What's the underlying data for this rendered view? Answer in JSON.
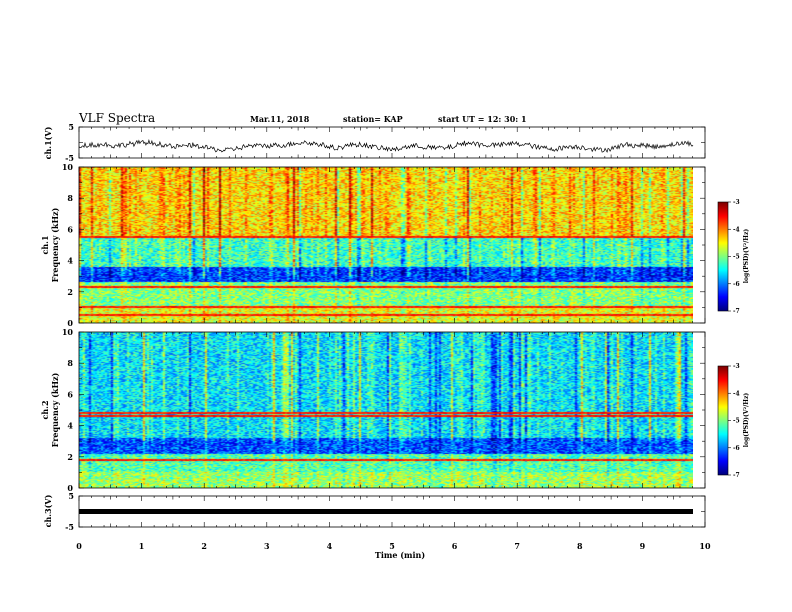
{
  "header": {
    "title": "VLF Spectra",
    "date": "Mar.11, 2018",
    "station": "station= KAP",
    "start": "start  UT =   12: 30: 1"
  },
  "axes": {
    "ch1_label": "ch.1(V)",
    "ch3_label": "ch.3(V)",
    "spec1_label_line1": "ch.1",
    "spec1_label_line2": "Frequency (kHz)",
    "spec2_label_line1": "ch.2",
    "spec2_label_line2": "Frequency (kHz)",
    "xlabel": "Time (min)",
    "cbar1_label": "log(PSD)(V²/Hz)",
    "cbar2_label": "log(PSD)(V²/Hz)"
  },
  "chart_data": [
    {
      "type": "line",
      "name": "ch1-waveform",
      "ylabel": "ch.1(V)",
      "xlim": [
        0,
        10
      ],
      "ylim": [
        -5,
        5
      ],
      "yticks": [
        "5",
        "-5"
      ],
      "series_hint": "noisy waveform around -1 V, mostly between -3 and 0"
    },
    {
      "type": "heatmap",
      "name": "ch1-spectrogram",
      "ylabel": "Frequency (kHz)",
      "xlim": [
        0,
        9.85
      ],
      "ylim": [
        0,
        10
      ],
      "xticks": [
        0,
        1,
        2,
        3,
        4,
        5,
        6,
        7,
        8,
        9,
        10
      ],
      "yticks": [
        0,
        2,
        4,
        6,
        8,
        10
      ],
      "colorbar": {
        "min": -7,
        "max": -3,
        "ticks": [
          "-3",
          "-4",
          "-5",
          "-6",
          "-7"
        ],
        "colormap": "jet"
      },
      "bands_kHz": [
        {
          "from": 0,
          "to": 1.0,
          "level": -4.6
        },
        {
          "from": 1.0,
          "to": 2.6,
          "level": -5.0
        },
        {
          "from": 2.6,
          "to": 3.6,
          "level": -6.3
        },
        {
          "from": 3.6,
          "to": 5.5,
          "level": -5.3
        },
        {
          "from": 5.5,
          "to": 10,
          "level": -4.4
        }
      ],
      "lines_kHz": [
        0.5,
        1.0,
        2.3,
        5.5
      ]
    },
    {
      "type": "heatmap",
      "name": "ch2-spectrogram",
      "ylabel": "Frequency (kHz)",
      "xlim": [
        0,
        9.85
      ],
      "ylim": [
        0,
        10
      ],
      "xticks": [
        0,
        1,
        2,
        3,
        4,
        5,
        6,
        7,
        8,
        9,
        10
      ],
      "yticks": [
        0,
        2,
        4,
        6,
        8,
        10
      ],
      "colorbar": {
        "min": -7,
        "max": -3,
        "ticks": [
          "-3",
          "-4",
          "-5",
          "-6",
          "-7"
        ],
        "colormap": "jet"
      },
      "bands_kHz": [
        {
          "from": 0,
          "to": 1.0,
          "level": -4.9
        },
        {
          "from": 1.0,
          "to": 2.2,
          "level": -5.2
        },
        {
          "from": 2.2,
          "to": 3.2,
          "level": -6.2
        },
        {
          "from": 3.2,
          "to": 4.5,
          "level": -5.6
        },
        {
          "from": 4.5,
          "to": 10,
          "level": -5.6
        }
      ],
      "lines_kHz": [
        1.8,
        4.6,
        4.8
      ]
    },
    {
      "type": "line",
      "name": "ch3-waveform",
      "ylabel": "ch.3(V)",
      "xlabel": "Time (min)",
      "xlim": [
        0,
        10
      ],
      "ylim": [
        -5,
        5
      ],
      "xticks": [
        "0",
        "1",
        "2",
        "3",
        "4",
        "5",
        "6",
        "7",
        "8",
        "9",
        "10"
      ],
      "yticks": [
        "5",
        "-5"
      ],
      "constant_value": 0
    }
  ]
}
